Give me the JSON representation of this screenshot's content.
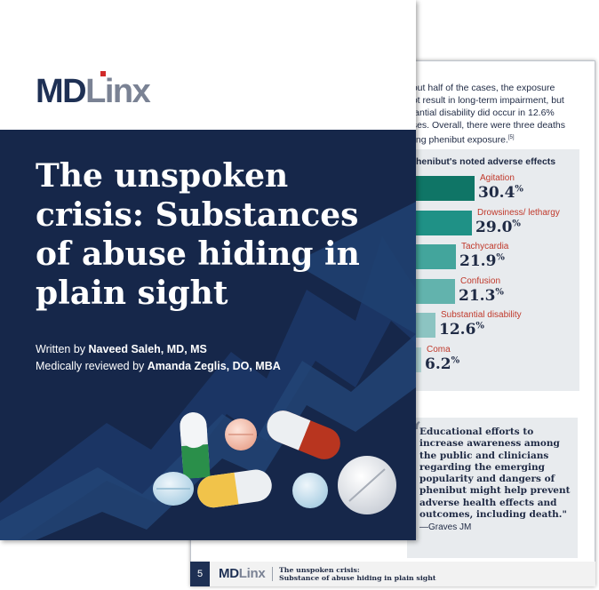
{
  "cover": {
    "logo_md": "MD",
    "logo_linx": "Linx",
    "title": "The unspoken crisis: Substances of abuse hiding in plain sight",
    "byline_written_prefix": "Written by ",
    "byline_written_name": "Naveed Saleh, MD, MS",
    "byline_reviewed_prefix": "Medically reviewed by ",
    "byline_reviewed_name": "Amanda Zeglis, DO, MBA"
  },
  "back_page": {
    "intro_lines": [
      "bout half of the cases, the exposure",
      "not result in long-term impairment, but",
      "stantial disability did occur in 12.6%",
      "ases. Overall, there were three deaths",
      "lving phenibut exposure."
    ],
    "intro_ref": "[5]",
    "chart_title": "henibut's noted adverse effects",
    "quote_text": "Educational efforts to increase awareness among the public and clinicians regarding the emerging popularity and dangers of phenibut might help prevent adverse health effects and outcomes, including death.\"",
    "quote_author": "—Graves JM",
    "footer": {
      "page_number": "5",
      "logo_md": "MD",
      "logo_linx": "Linx",
      "title_line1": "The unspoken crisis:",
      "title_line2": "Substance of abuse hiding in plain sight"
    }
  },
  "chart_data": {
    "type": "bar",
    "title": "henibut's noted adverse effects",
    "categories": [
      "Agitation",
      "Drowsiness/ lethargy",
      "Tachycardia",
      "Confusion",
      "Substantial disability",
      "Coma"
    ],
    "values": [
      30.4,
      29.0,
      21.9,
      21.3,
      12.6,
      6.2
    ],
    "value_labels": [
      "30.4",
      "29.0",
      "21.9",
      "21.3",
      "12.6",
      "6.2"
    ],
    "unit": "%",
    "colors": [
      "#0f7566",
      "#1f9186",
      "#43a59c",
      "#62b3ad",
      "#8cc4c2",
      "#b2d6d6"
    ]
  }
}
